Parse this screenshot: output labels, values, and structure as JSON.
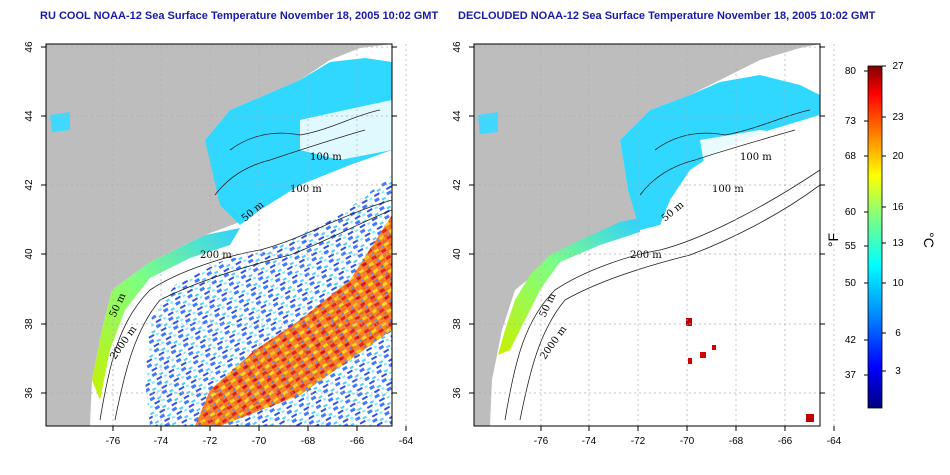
{
  "titles": {
    "left": "RU COOL NOAA-12 Sea Surface Temperature November 18, 2005 10:02 GMT",
    "right": "DECLOUDED NOAA-12 Sea Surface Temperature November 18, 2005 10:02 GMT"
  },
  "axes": {
    "lon_ticks": [
      "-76",
      "-74",
      "-72",
      "-70",
      "-68",
      "-66",
      "-64"
    ],
    "lat_ticks": [
      "36",
      "38",
      "40",
      "42",
      "44",
      "46"
    ]
  },
  "contour_labels_left": [
    "100 m",
    "100 m",
    "50 m",
    "200 m",
    "50 m",
    "2000 m"
  ],
  "contour_labels_right": [
    "100 m",
    "100 m",
    "50 m",
    "200 m",
    "50 m",
    "2000 m"
  ],
  "colorbar": {
    "fahrenheit_unit": "°F",
    "celsius_unit": "°C",
    "fahrenheit_ticks": [
      "80",
      "73",
      "68",
      "60",
      "55",
      "50",
      "42",
      "37"
    ],
    "celsius_ticks": [
      "27",
      "23",
      "20",
      "16",
      "13",
      "10",
      "6",
      "3"
    ]
  },
  "colors": {
    "land": "#bdbdbd",
    "title": "#1a1aa8",
    "grid": "#b0b0b0",
    "scale": [
      "#000080",
      "#0000ff",
      "#0080ff",
      "#00ffff",
      "#80ff80",
      "#ffff00",
      "#ff8000",
      "#ff0000",
      "#800000"
    ]
  }
}
